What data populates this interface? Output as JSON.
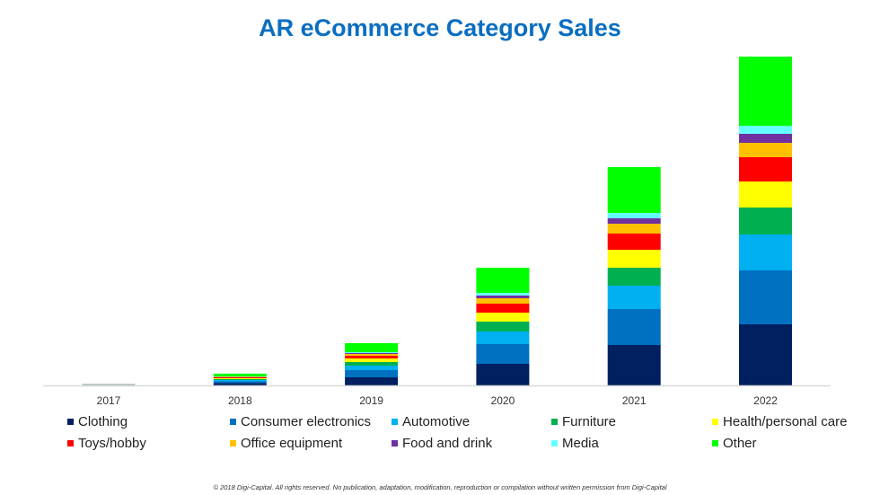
{
  "chart_data": {
    "type": "bar",
    "stacked": true,
    "title": "AR eCommerce Category Sales",
    "xlabel": "",
    "ylabel": "",
    "categories": [
      "2017",
      "2018",
      "2019",
      "2020",
      "2021",
      "2022"
    ],
    "ylim": [
      0,
      370
    ],
    "grid": false,
    "legend_position": "bottom",
    "series": [
      {
        "name": "Clothing",
        "color": "#002060",
        "values": [
          0.3,
          2.5,
          9,
          24,
          45,
          68
        ]
      },
      {
        "name": "Consumer electronics",
        "color": "#0070C0",
        "values": [
          0.3,
          2,
          8,
          22,
          40,
          60
        ]
      },
      {
        "name": "Automotive",
        "color": "#00B0F0",
        "values": [
          0.2,
          1.5,
          5,
          14,
          26,
          40
        ]
      },
      {
        "name": "Furniture",
        "color": "#00B050",
        "values": [
          0.2,
          1,
          4,
          11,
          20,
          30
        ]
      },
      {
        "name": "Health/personal care",
        "color": "#FFFF00",
        "values": [
          0.1,
          1,
          4,
          10,
          20,
          29
        ]
      },
      {
        "name": "Toys/hobby",
        "color": "#FF0000",
        "values": [
          0.1,
          1,
          3,
          10,
          18,
          27
        ]
      },
      {
        "name": "Office equipment",
        "color": "#FFC000",
        "values": [
          0.1,
          0.5,
          2,
          6,
          11,
          16
        ]
      },
      {
        "name": "Food and drink",
        "color": "#7030A0",
        "values": [
          0.05,
          0.3,
          1,
          3,
          6,
          10
        ]
      },
      {
        "name": "Media",
        "color": "#66FFFF",
        "values": [
          0.05,
          0.3,
          1,
          3,
          6,
          9
        ]
      },
      {
        "name": "Other",
        "color": "#00FF00",
        "values": [
          0.3,
          3,
          10,
          28,
          51,
          77
        ]
      }
    ]
  },
  "footer": "© 2018 Digi-Capital. All rights reserved. No publication, adaptation, modification, reproduction or compilation without written permission from Digi-Capital"
}
